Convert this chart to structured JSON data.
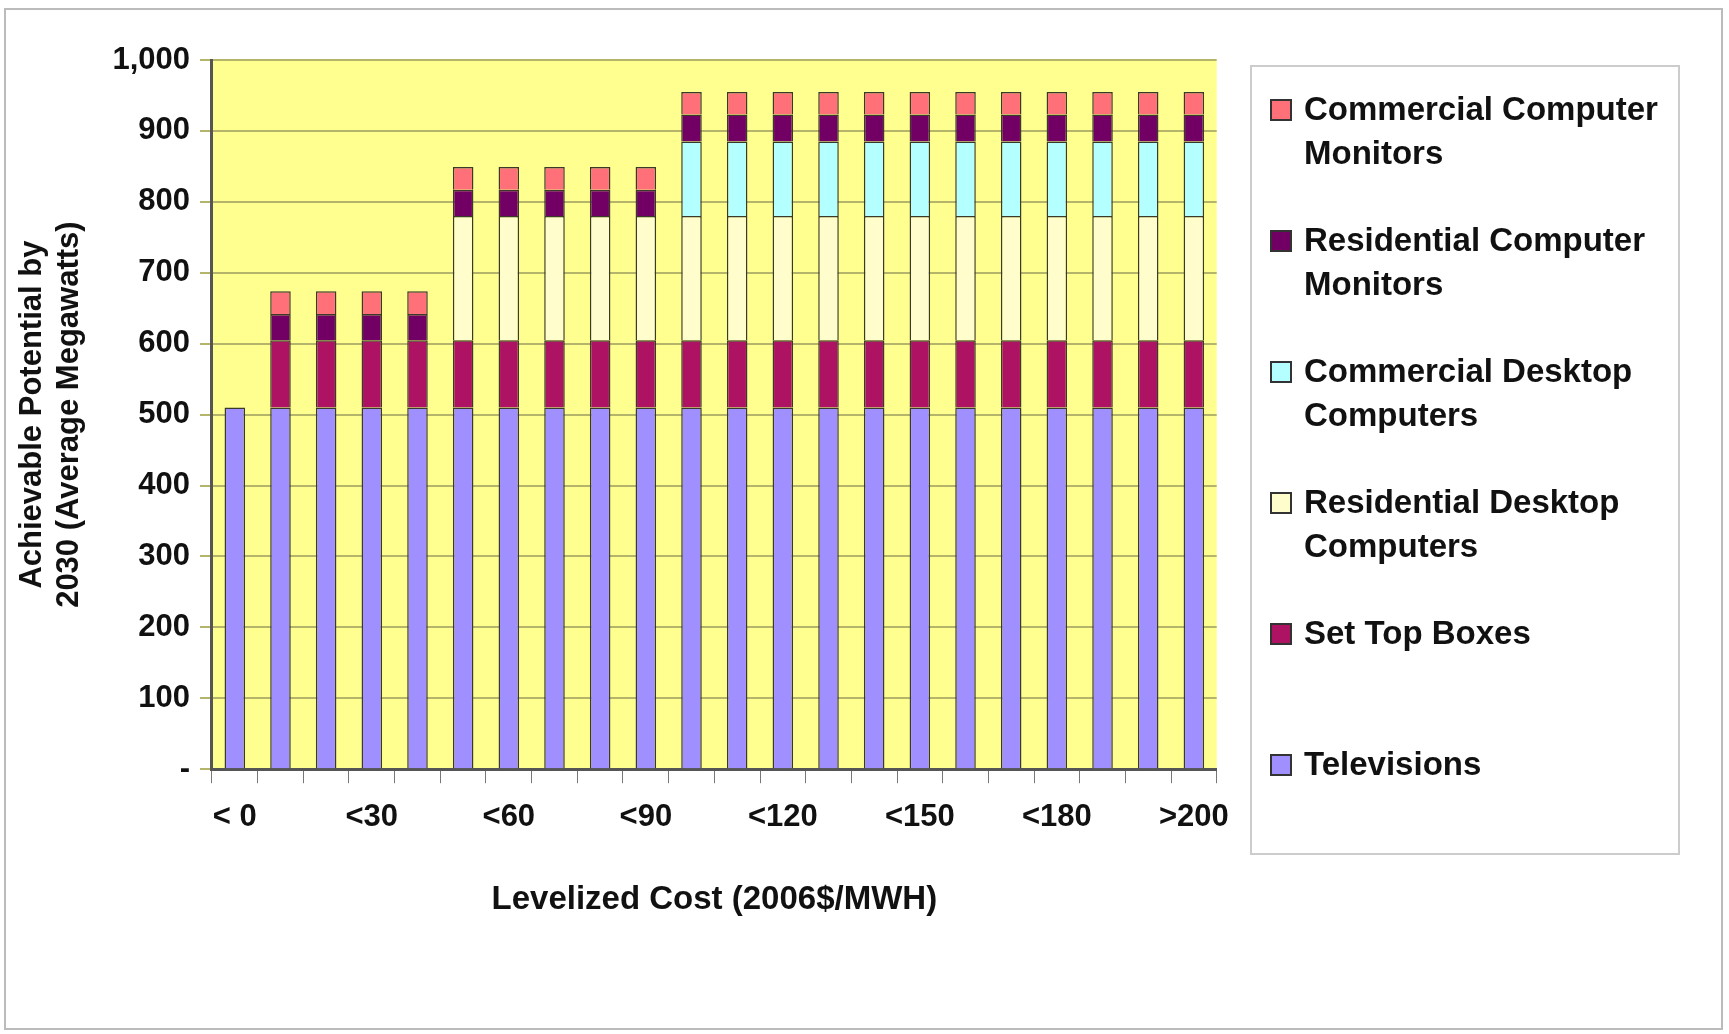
{
  "chart_data": {
    "type": "bar",
    "stacked": true,
    "xlabel": "Levelized Cost (2006$/MWH)",
    "ylabel": "Achievable Potential by 2030 (Average Megawatts)",
    "categories": [
      "< 0",
      null,
      null,
      "<30",
      null,
      null,
      "<60",
      null,
      null,
      "<90",
      null,
      null,
      "<120",
      null,
      null,
      "<150",
      null,
      null,
      "<180",
      null,
      null,
      ">200"
    ],
    "series": [
      {
        "name": "Televisions",
        "color": "#9f8fff",
        "values": [
          510,
          510,
          510,
          510,
          510,
          510,
          510,
          510,
          510,
          510,
          510,
          510,
          510,
          510,
          510,
          510,
          510,
          510,
          510,
          510,
          510,
          510
        ]
      },
      {
        "name": "Set Top Boxes",
        "color": "#ad1263",
        "values": [
          null,
          95,
          95,
          95,
          95,
          95,
          95,
          95,
          95,
          95,
          95,
          95,
          95,
          95,
          95,
          95,
          95,
          95,
          95,
          95,
          95,
          95
        ]
      },
      {
        "name": "Residential Desktop Computers",
        "color": "#fffdcc",
        "values": [
          null,
          null,
          null,
          null,
          null,
          175,
          175,
          175,
          175,
          175,
          175,
          175,
          175,
          175,
          175,
          175,
          175,
          175,
          175,
          175,
          175,
          175
        ]
      },
      {
        "name": "Commercial Desktop Computers",
        "color": "#b4ffff",
        "values": [
          null,
          null,
          null,
          null,
          null,
          null,
          null,
          null,
          null,
          null,
          105,
          105,
          105,
          105,
          105,
          105,
          105,
          105,
          105,
          105,
          105,
          105
        ]
      },
      {
        "name": "Residential Computer Monitors",
        "color": "#720064",
        "values": [
          null,
          37,
          37,
          37,
          37,
          37,
          37,
          37,
          37,
          37,
          38,
          38,
          38,
          38,
          38,
          38,
          38,
          38,
          38,
          38,
          38,
          38
        ]
      },
      {
        "name": "Commercial Computer Monitors",
        "color": "#ff7078",
        "values": [
          null,
          32,
          32,
          32,
          32,
          32,
          32,
          32,
          32,
          32,
          32,
          32,
          32,
          32,
          32,
          32,
          32,
          32,
          32,
          32,
          32,
          32
        ]
      }
    ],
    "ylim": [
      0,
      1000
    ],
    "yticks": [
      {
        "value": 0,
        "label": "-"
      },
      {
        "value": 100,
        "label": "100"
      },
      {
        "value": 200,
        "label": "200"
      },
      {
        "value": 300,
        "label": "300"
      },
      {
        "value": 400,
        "label": "400"
      },
      {
        "value": 500,
        "label": "500"
      },
      {
        "value": 600,
        "label": "600"
      },
      {
        "value": 700,
        "label": "700"
      },
      {
        "value": 800,
        "label": "800"
      },
      {
        "value": 900,
        "label": "900"
      },
      {
        "value": 1000,
        "label": "1,000"
      }
    ],
    "grid": "y",
    "legend": "right"
  }
}
